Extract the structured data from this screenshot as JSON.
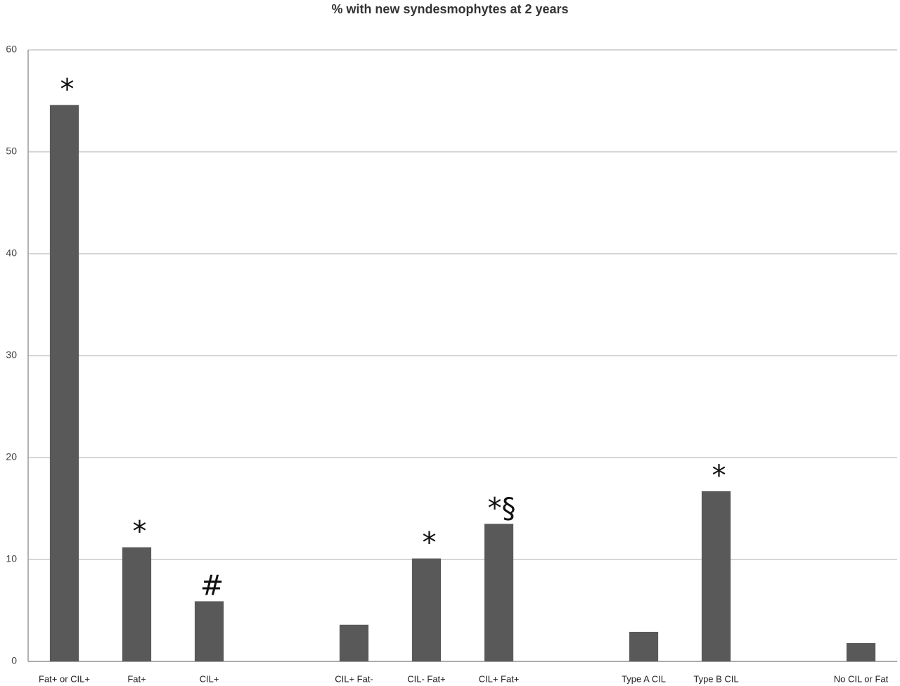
{
  "chart_data": {
    "type": "bar",
    "title": "% with new syndesmophytes at 2 years",
    "categories": [
      "Fat+ or CIL+",
      "Fat+",
      "CIL+",
      null,
      "CIL+ Fat-",
      "CIL- Fat+",
      "CIL+ Fat+",
      null,
      "Type A CIL",
      "Type B CIL",
      null,
      "No CIL or Fat"
    ],
    "values": [
      54.6,
      11.2,
      5.9,
      null,
      3.6,
      10.1,
      13.5,
      null,
      2.9,
      16.7,
      null,
      1.8
    ],
    "annotations": [
      "*",
      "*",
      "#",
      null,
      null,
      "*",
      "*§",
      null,
      null,
      "*",
      null,
      null
    ],
    "color": "#595959",
    "ylim": [
      0,
      60
    ],
    "yticks": [
      0,
      10,
      20,
      30,
      40,
      50,
      60
    ],
    "grid": true
  }
}
